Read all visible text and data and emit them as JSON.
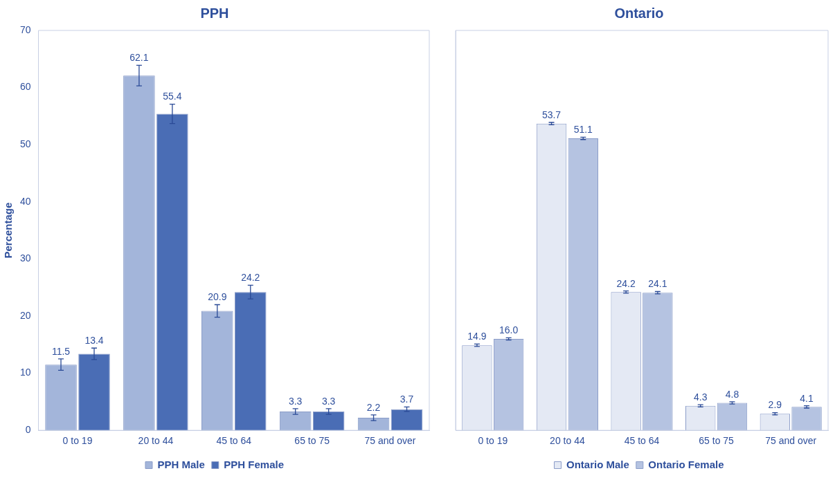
{
  "chart_data": [
    {
      "type": "bar",
      "title": "PPH",
      "ylabel": "Percentage",
      "categories": [
        "0 to 19",
        "20 to 44",
        "45 to 64",
        "65 to 75",
        "75 and over"
      ],
      "ylim": [
        0,
        70
      ],
      "yticks": [
        0,
        10,
        20,
        30,
        40,
        50,
        60,
        70
      ],
      "grid": false,
      "legend": "bottom",
      "data_labels": true,
      "series": [
        {
          "name": "PPH Male",
          "color": "#a3b5da",
          "values": [
            11.5,
            62.1,
            20.9,
            3.3,
            2.2
          ],
          "errors": [
            1.0,
            1.8,
            1.1,
            0.5,
            0.5
          ]
        },
        {
          "name": "PPH Female",
          "color": "#4a6db5",
          "values": [
            13.4,
            55.4,
            24.2,
            3.3,
            3.7
          ],
          "errors": [
            1.0,
            1.7,
            1.2,
            0.5,
            0.4
          ]
        }
      ]
    },
    {
      "type": "bar",
      "title": "Ontario",
      "categories": [
        "0 to 19",
        "20 to 44",
        "45 to 64",
        "65 to 75",
        "75 and over"
      ],
      "ylim": [
        0,
        70
      ],
      "yticks": [
        0,
        10,
        20,
        30,
        40,
        50,
        60,
        70
      ],
      "tick_labels": "x",
      "grid": false,
      "legend": "bottom",
      "data_labels": true,
      "series": [
        {
          "name": "Ontario Male",
          "color": "#e4e9f4",
          "values": [
            14.9,
            53.7,
            24.2,
            4.3,
            2.9
          ],
          "errors": [
            0.2,
            0.2,
            0.2,
            0.2,
            0.2
          ]
        },
        {
          "name": "Ontario Female",
          "color": "#b5c3e1",
          "values": [
            16.0,
            51.1,
            24.1,
            4.8,
            4.1
          ],
          "value_labels": [
            "16.0",
            "51.1",
            "24.1",
            "4.8",
            "4.1"
          ],
          "errors": [
            0.2,
            0.2,
            0.2,
            0.2,
            0.2
          ]
        }
      ]
    }
  ]
}
